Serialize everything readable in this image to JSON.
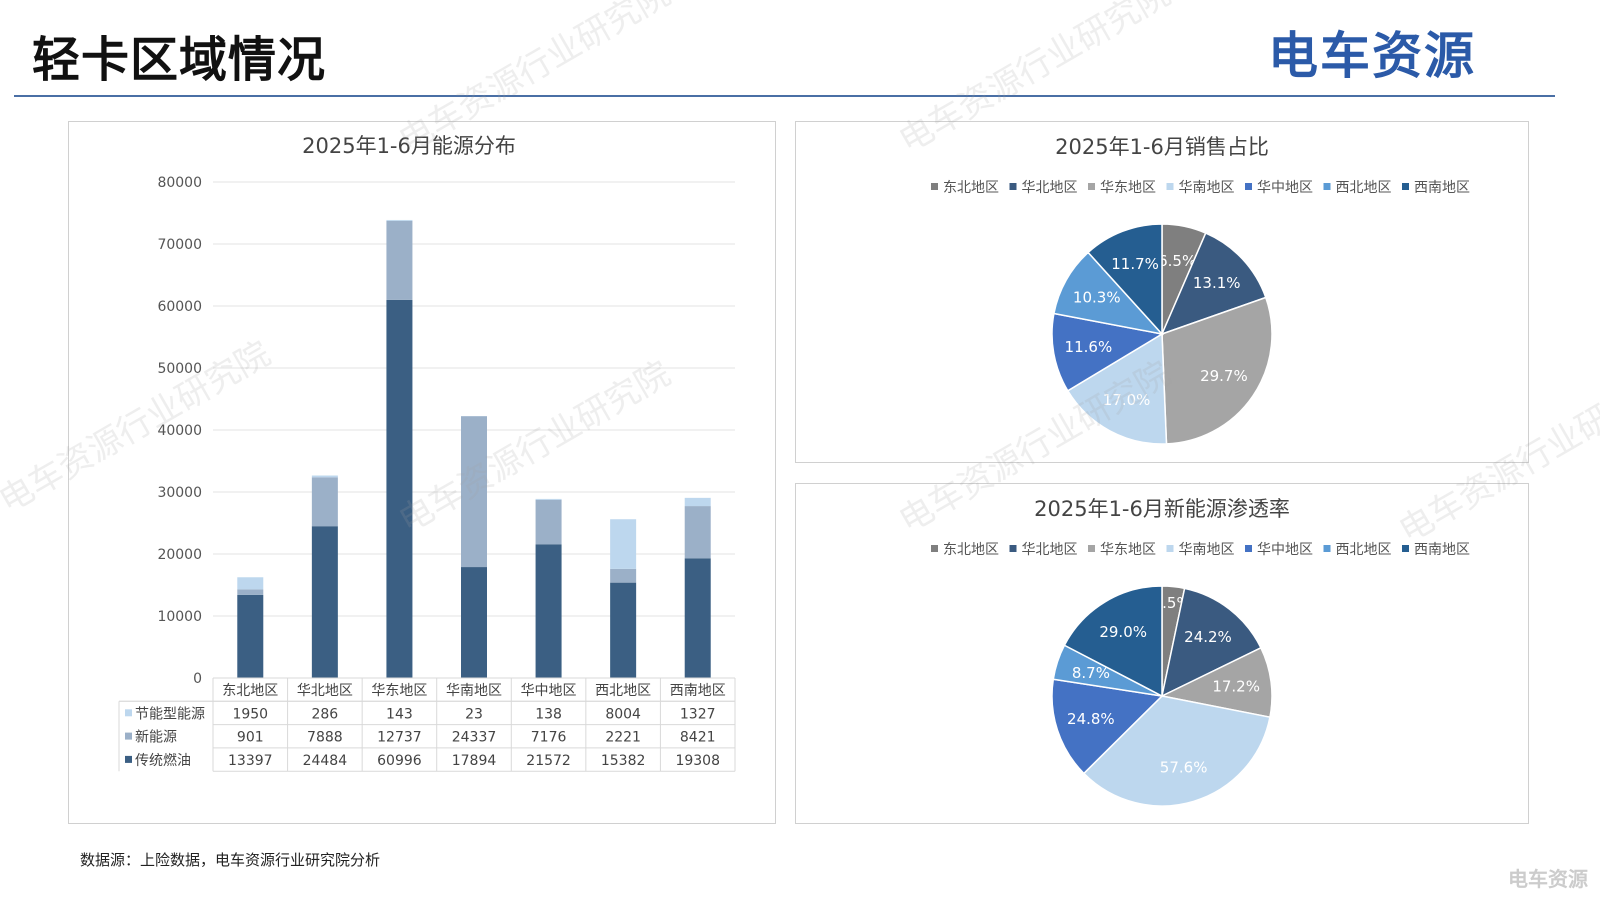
{
  "header": {
    "title": "轻卡区域情况",
    "logo_text": "电车资源"
  },
  "footer": {
    "source": "数据源：上险数据，电车资源行业研究院分析",
    "corner_mark": "电车资源"
  },
  "watermark": "电车资源行业研究院",
  "chart_data": [
    {
      "type": "bar",
      "stacked": true,
      "title": "2025年1-6月能源分布",
      "ylim": [
        0,
        80000
      ],
      "yticks": [
        0,
        10000,
        20000,
        30000,
        40000,
        50000,
        60000,
        70000,
        80000
      ],
      "grid": true,
      "categories": [
        "东北地区",
        "华北地区",
        "华东地区",
        "华南地区",
        "华中地区",
        "西北地区",
        "西南地区"
      ],
      "series": [
        {
          "name": "传统燃油",
          "color": "#3b5f83",
          "values": [
            13397,
            24484,
            60996,
            17894,
            21572,
            15382,
            19308
          ]
        },
        {
          "name": "新能源",
          "color": "#9bb0c8",
          "values": [
            901,
            7888,
            12737,
            24337,
            7176,
            2221,
            8421
          ]
        },
        {
          "name": "节能型能源",
          "color": "#bdd7ee",
          "values": [
            1950,
            286,
            143,
            23,
            138,
            8004,
            1327
          ]
        }
      ],
      "table_order": [
        "节能型能源",
        "新能源",
        "传统燃油"
      ]
    },
    {
      "type": "pie",
      "title": "2025年1-6月销售占比",
      "legend": "top",
      "labels": [
        "东北地区",
        "华北地区",
        "华东地区",
        "华南地区",
        "华中地区",
        "西北地区",
        "西南地区"
      ],
      "values": [
        6.5,
        13.1,
        29.7,
        17.0,
        11.6,
        10.3,
        11.7
      ],
      "value_labels": [
        "6.5%",
        "13.1%",
        "29.7%",
        "17.0%",
        "11.6%",
        "10.3%",
        "11.7%"
      ],
      "colors": [
        "#7f7f7f",
        "#3a5a80",
        "#a5a5a5",
        "#bdd7ee",
        "#4472c4",
        "#5b9bd5",
        "#255e91"
      ]
    },
    {
      "type": "pie",
      "title": "2025年1-6月新能源渗透率",
      "legend": "top",
      "labels": [
        "东北地区",
        "华北地区",
        "华东地区",
        "华南地区",
        "华中地区",
        "西北地区",
        "西南地区"
      ],
      "values": [
        5.5,
        24.2,
        17.2,
        57.6,
        24.8,
        8.7,
        29.0
      ],
      "value_labels": [
        "5.5%",
        "24.2%",
        "17.2%",
        "57.6%",
        "24.8%",
        "8.7%",
        "29.0%"
      ],
      "colors": [
        "#7f7f7f",
        "#3a5a80",
        "#a5a5a5",
        "#bdd7ee",
        "#4472c4",
        "#5b9bd5",
        "#255e91"
      ]
    }
  ]
}
